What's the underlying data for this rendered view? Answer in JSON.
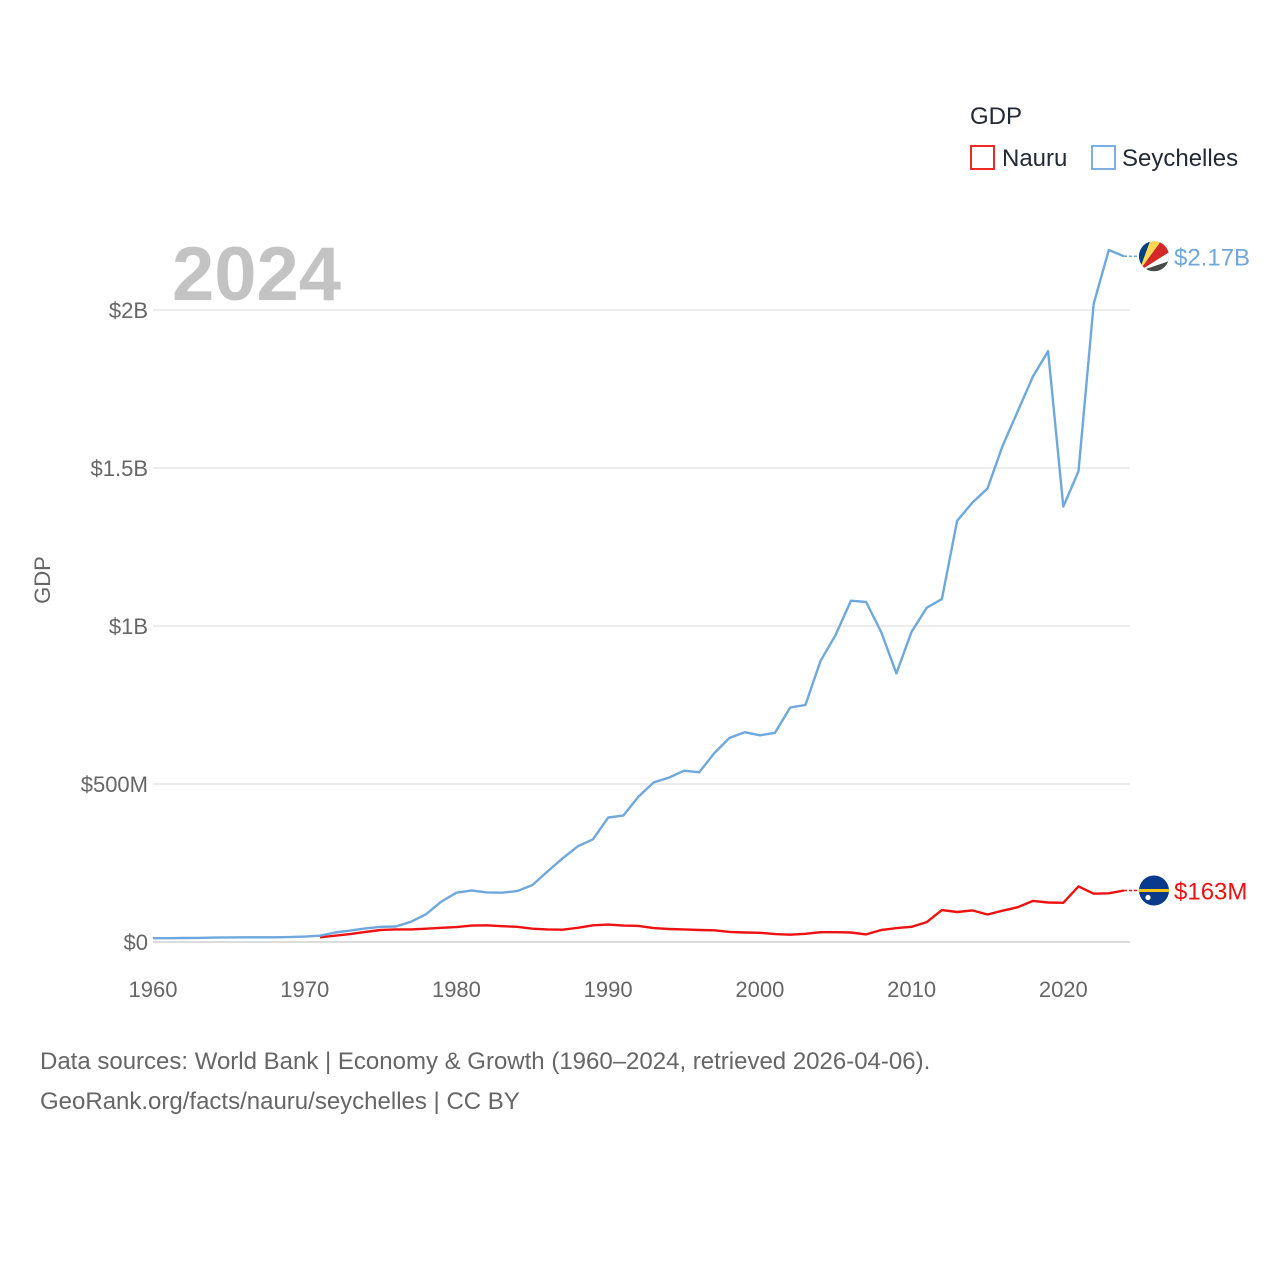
{
  "chart_data": {
    "type": "line",
    "year_label": "2024",
    "ylabel": "GDP",
    "ylim": [
      0,
      2200000000
    ],
    "xlim": [
      1960,
      2024
    ],
    "y_ticks": [
      {
        "value": 0,
        "label": "$0"
      },
      {
        "value": 500000000,
        "label": "$500M"
      },
      {
        "value": 1000000000,
        "label": "$1B"
      },
      {
        "value": 1500000000,
        "label": "$1.5B"
      },
      {
        "value": 2000000000,
        "label": "$2B"
      }
    ],
    "x_ticks": [
      {
        "value": 1960,
        "label": "1960"
      },
      {
        "value": 1970,
        "label": "1970"
      },
      {
        "value": 1980,
        "label": "1980"
      },
      {
        "value": 1990,
        "label": "1990"
      },
      {
        "value": 2000,
        "label": "2000"
      },
      {
        "value": 2010,
        "label": "2010"
      },
      {
        "value": 2020,
        "label": "2020"
      }
    ],
    "legend": {
      "title": "GDP",
      "position": "top-right"
    },
    "x": [
      1960,
      1961,
      1962,
      1963,
      1964,
      1965,
      1966,
      1967,
      1968,
      1969,
      1970,
      1971,
      1972,
      1973,
      1974,
      1975,
      1976,
      1977,
      1978,
      1979,
      1980,
      1981,
      1982,
      1983,
      1984,
      1985,
      1986,
      1987,
      1988,
      1989,
      1990,
      1991,
      1992,
      1993,
      1994,
      1995,
      1996,
      1997,
      1998,
      1999,
      2000,
      2001,
      2002,
      2003,
      2004,
      2005,
      2006,
      2007,
      2008,
      2009,
      2010,
      2011,
      2012,
      2013,
      2014,
      2015,
      2016,
      2017,
      2018,
      2019,
      2020,
      2021,
      2022,
      2023,
      2024
    ],
    "series": [
      {
        "name": "Nauru",
        "color": "#ee1111",
        "end_label": "$163M",
        "flag": "nauru-flag-icon",
        "values": [
          null,
          null,
          null,
          null,
          null,
          null,
          null,
          null,
          null,
          null,
          null,
          15000000,
          20000000,
          25000000,
          32000000,
          38000000,
          40000000,
          40000000,
          42000000,
          45000000,
          47000000,
          52000000,
          53000000,
          50000000,
          48000000,
          42000000,
          40000000,
          39000000,
          45000000,
          53000000,
          55000000,
          52000000,
          51000000,
          44000000,
          41000000,
          40000000,
          38000000,
          37000000,
          32000000,
          30000000,
          29000000,
          25000000,
          23000000,
          26000000,
          31000000,
          31000000,
          30000000,
          24000000,
          38000000,
          44000000,
          48000000,
          63000000,
          101000000,
          95000000,
          100000000,
          87000000,
          99000000,
          110000000,
          130000000,
          125000000,
          124000000,
          176000000,
          153000000,
          154000000,
          163000000
        ]
      },
      {
        "name": "Seychelles",
        "color": "#6fa8dc",
        "end_label": "$2.17B",
        "flag": "seychelles-flag-icon",
        "values": [
          12000000,
          12000000,
          12500000,
          13000000,
          14000000,
          14500000,
          15000000,
          15000000,
          15000000,
          15500000,
          17000000,
          20000000,
          30000000,
          36000000,
          43000000,
          48000000,
          49000000,
          64000000,
          88000000,
          128000000,
          156000000,
          163000000,
          157000000,
          156000000,
          161000000,
          180000000,
          223000000,
          265000000,
          303000000,
          325000000,
          394000000,
          400000000,
          460000000,
          505000000,
          520000000,
          542000000,
          537000000,
          598000000,
          646000000,
          664000000,
          654000000,
          662000000,
          742000000,
          750000000,
          890000000,
          972000000,
          1080000000,
          1076000000,
          980000000,
          850000000,
          982000000,
          1058000000,
          1085000000,
          1333000000,
          1390000000,
          1435000000,
          1570000000,
          1680000000,
          1790000000,
          1870000000,
          1378000000,
          1490000000,
          2020000000,
          2190000000,
          2170000000
        ]
      }
    ]
  },
  "footer": {
    "line1": "Data sources: World Bank | Economy & Growth (1960–2024, retrieved 2026-04-06).",
    "line2": "GeoRank.org/facts/nauru/seychelles | CC BY"
  }
}
